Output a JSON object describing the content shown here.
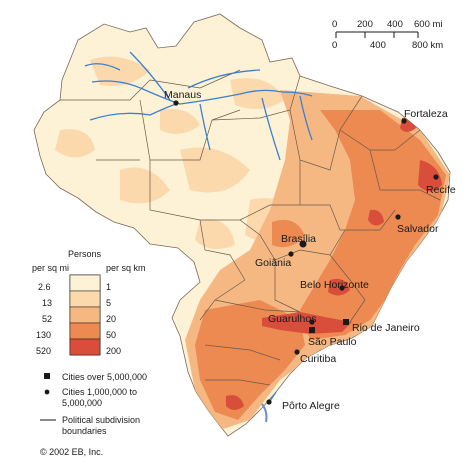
{
  "colors": {
    "sea": "#ffffff",
    "band0": "#fdf2d6",
    "band1": "#fbd9ac",
    "band2": "#f6b883",
    "band3": "#ec8a52",
    "band4": "#d94e3b",
    "river": "#3b7fd0",
    "border": "#6a5a4a"
  },
  "scale_bar": {
    "mi_labels": [
      "0",
      "200",
      "400",
      "600 mi"
    ],
    "km_labels": [
      "0",
      "400",
      "800 km"
    ]
  },
  "legend": {
    "header": "Persons",
    "left_unit": "per sq mi",
    "right_unit": "per sq km",
    "left_values": [
      "2.6",
      "13",
      "52",
      "130",
      "520"
    ],
    "right_values": [
      "1",
      "5",
      "20",
      "50",
      "200"
    ],
    "symbols": [
      {
        "icon": "square-icon",
        "label": "Cities over 5,000,000"
      },
      {
        "icon": "dot-icon",
        "label": "Cities 1,000,000 to 5,000,000"
      },
      {
        "icon": "line-icon",
        "label": "Political subdivision boundaries"
      }
    ],
    "symbol_lines": {
      "cities_large": "Cities over 5,000,000",
      "cities_mid_1": "Cities 1,000,000 to",
      "cities_mid_2": "5,000,000",
      "boundaries_1": "Political subdivision",
      "boundaries_2": "boundaries"
    }
  },
  "cities": {
    "manaus": "Manaus",
    "fortaleza": "Fortaleza",
    "recife": "Recife",
    "salvador": "Salvador",
    "brasilia": "Brasília",
    "goiania": "Goiânia",
    "belo_horizonte": "Belo Horizonte",
    "guarulhos": "Guarulhos",
    "rio_de_janeiro": "Rio de Janeiro",
    "sao_paulo": "São Paulo",
    "curitiba": "Curitiba",
    "porto_alegre": "Pôrto Alegre"
  },
  "copyright": "© 2002 EB, Inc."
}
